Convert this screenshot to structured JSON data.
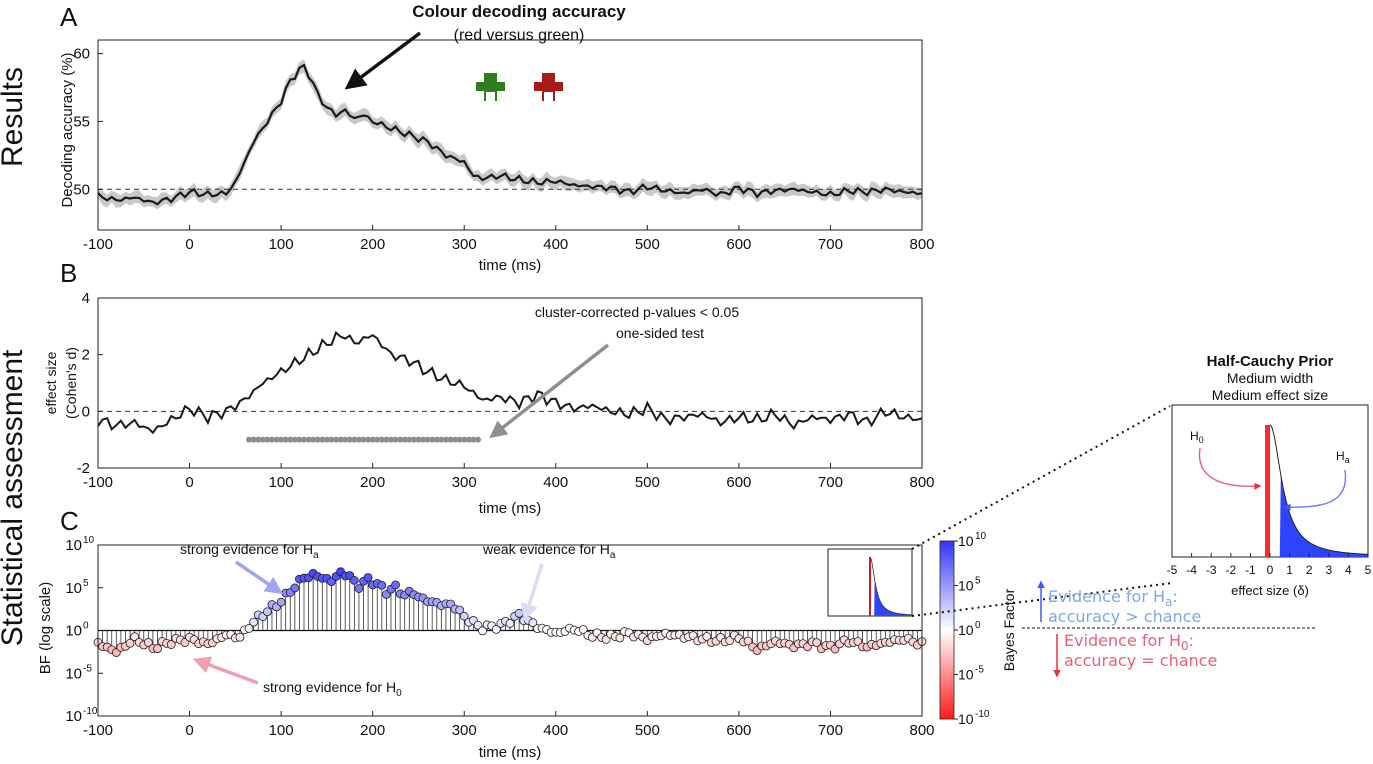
{
  "section_labels": {
    "results": "Results",
    "statistical": "Statistical assessment"
  },
  "panel_letters": {
    "a": "A",
    "b": "B",
    "c": "C"
  },
  "colors": {
    "line": "#1a1a1a",
    "ci_band": "#c9c9c9",
    "dashed": "#333333",
    "marker_gray": "#8c8c8c",
    "arrow_gray": "#8f8f8f",
    "green_stim": "#2e7d1e",
    "red_stim": "#a51c16",
    "bf_high": "#3232ff",
    "bf_low": "#ff1a1a",
    "prior_fill": "#2d45ff",
    "prior_red": "#ff2a2a",
    "ha_text": "#7fa6ea",
    "h0_text": "#e8607a",
    "ha_arrow": "#3a58ff",
    "h0_arrow": "#e8303a"
  },
  "icons": {
    "stimulus_green": "green-stimulus-icon",
    "stimulus_red": "red-stimulus-icon"
  },
  "panel_a": {
    "title": "Colour decoding accuracy",
    "subtitle": "(red versus green)",
    "ylabel": "Decoding accuracy (%)",
    "xlabel": "time (ms)"
  },
  "panel_b": {
    "ylabel_line1": "effect size",
    "ylabel_line2": "(Cohen's d)",
    "xlabel": "time (ms)",
    "annotation_line1": "cluster-corrected p-values < 0.05",
    "annotation_line2": "one-sided test"
  },
  "panel_c": {
    "ylabel": "BF (log scale)",
    "xlabel": "time (ms)",
    "annotation_strong_ha": "strong evidence for H",
    "annotation_weak_ha": "weak evidence for H",
    "annotation_strong_h0": "strong evidence for H",
    "sub_a": "a",
    "sub_0": "0"
  },
  "colorbar": {
    "label": "Bayes Factor",
    "ticks": [
      "10",
      "10",
      "10",
      "10",
      "10"
    ],
    "exponents": [
      "10",
      "5",
      "0",
      "-5",
      "-10"
    ]
  },
  "prior": {
    "title": "Half-Cauchy Prior",
    "line1": "Medium width",
    "line2": "Medium effect size",
    "xlabel": "effect size (δ)",
    "h": "H",
    "sub_0": "0",
    "sub_a": "a",
    "xticks": [
      "-5",
      "-4",
      "-3",
      "-2",
      "-1",
      "0",
      "1",
      "2",
      "3",
      "4",
      "5"
    ]
  },
  "legend": {
    "ha_line1_prefix": "Evidence for H",
    "ha_sub": "a",
    "ha_colon": ":",
    "ha_line2": "accuracy > chance",
    "h0_line1_prefix": "Evidence for H",
    "h0_sub": "0",
    "h0_colon": ":",
    "h0_line2": "accuracy = chance"
  },
  "chart_data": [
    {
      "id": "A",
      "type": "line",
      "title": "Colour decoding accuracy",
      "subtitle": "(red versus green)",
      "xlabel": "time (ms)",
      "ylabel": "Decoding accuracy (%)",
      "xlim": [
        -100,
        800
      ],
      "ylim": [
        47,
        61
      ],
      "xticks": [
        -100,
        0,
        100,
        200,
        300,
        400,
        500,
        600,
        700,
        800
      ],
      "yticks": [
        50,
        55,
        60
      ],
      "chance_level": 50,
      "x": [
        -100,
        -80,
        -60,
        -40,
        -20,
        0,
        20,
        40,
        50,
        60,
        70,
        80,
        90,
        100,
        110,
        120,
        125,
        130,
        140,
        150,
        160,
        170,
        180,
        190,
        200,
        220,
        240,
        260,
        280,
        300,
        310,
        320,
        340,
        360,
        380,
        400,
        420,
        440,
        460,
        480,
        500,
        520,
        540,
        560,
        580,
        600,
        620,
        640,
        660,
        680,
        700,
        720,
        740,
        760,
        780,
        800
      ],
      "y": [
        49.5,
        49.2,
        49.4,
        49.0,
        49.3,
        49.8,
        49.6,
        49.7,
        50.5,
        52.0,
        53.5,
        54.5,
        55.5,
        56.5,
        58.0,
        58.8,
        59.0,
        58.5,
        57.0,
        56.0,
        55.5,
        55.8,
        55.2,
        55.5,
        55.0,
        54.5,
        54.0,
        53.5,
        52.5,
        52.0,
        51.0,
        50.8,
        51.0,
        50.7,
        50.5,
        50.6,
        50.3,
        50.2,
        50.1,
        49.8,
        50.2,
        49.9,
        49.7,
        50.0,
        49.6,
        50.1,
        49.7,
        49.9,
        50.0,
        49.8,
        49.6,
        49.9,
        49.8,
        50.0,
        49.8,
        49.7
      ]
    },
    {
      "id": "B",
      "type": "line",
      "xlabel": "time (ms)",
      "ylabel": "effect size (Cohen's d)",
      "xlim": [
        -100,
        800
      ],
      "ylim": [
        -2,
        4
      ],
      "xticks": [
        -100,
        0,
        100,
        200,
        300,
        400,
        500,
        600,
        700,
        800
      ],
      "yticks": [
        -2,
        0,
        2,
        4
      ],
      "zero_line": 0,
      "x": [
        -100,
        -80,
        -60,
        -40,
        -20,
        0,
        20,
        40,
        60,
        80,
        100,
        120,
        140,
        160,
        170,
        180,
        200,
        220,
        240,
        260,
        280,
        300,
        320,
        340,
        360,
        380,
        400,
        420,
        440,
        460,
        480,
        500,
        520,
        540,
        560,
        580,
        600,
        620,
        640,
        660,
        680,
        700,
        720,
        740,
        760,
        780,
        800
      ],
      "y": [
        -0.3,
        -0.5,
        -0.4,
        -0.7,
        -0.3,
        0.1,
        -0.2,
        0.0,
        0.4,
        1.0,
        1.4,
        1.8,
        2.2,
        2.6,
        2.7,
        2.4,
        2.7,
        2.0,
        1.8,
        1.4,
        1.1,
        0.9,
        0.4,
        0.5,
        0.3,
        0.6,
        0.3,
        0.1,
        0.2,
        0.0,
        -0.1,
        0.1,
        -0.3,
        -0.2,
        -0.1,
        -0.4,
        -0.2,
        -0.3,
        -0.1,
        -0.5,
        -0.2,
        -0.3,
        -0.1,
        -0.4,
        0.0,
        -0.2,
        -0.3
      ],
      "significant_range": [
        65,
        315
      ],
      "significant_y": -1
    },
    {
      "id": "C",
      "type": "scatter",
      "xlabel": "time (ms)",
      "ylabel": "BF (log scale)",
      "xlim": [
        -100,
        800
      ],
      "ylim_log10": [
        -10,
        10
      ],
      "xticks": [
        -100,
        0,
        100,
        200,
        300,
        400,
        500,
        600,
        700,
        800
      ],
      "yticks_log10": [
        -10,
        -5,
        0,
        5,
        10
      ],
      "x": [
        -100,
        -80,
        -60,
        -40,
        -20,
        0,
        20,
        40,
        55,
        65,
        75,
        85,
        95,
        105,
        115,
        125,
        135,
        145,
        155,
        165,
        175,
        185,
        195,
        205,
        215,
        225,
        235,
        245,
        255,
        265,
        275,
        285,
        295,
        305,
        320,
        340,
        360,
        380,
        400,
        420,
        440,
        460,
        480,
        500,
        520,
        540,
        560,
        580,
        600,
        620,
        640,
        660,
        680,
        700,
        720,
        740,
        760,
        780,
        800
      ],
      "log10_bf": [
        -1.5,
        -2.5,
        -1.0,
        -2.0,
        -1.3,
        -1.0,
        -1.6,
        -0.5,
        -0.8,
        0.5,
        1.5,
        2.3,
        3.0,
        4.0,
        5.2,
        6.2,
        6.5,
        6.2,
        5.8,
        6.8,
        6.3,
        5.2,
        6.0,
        5.4,
        4.6,
        5.0,
        4.2,
        4.4,
        3.6,
        3.4,
        3.0,
        3.1,
        2.2,
        1.2,
        0.3,
        0.6,
        1.8,
        0.4,
        -0.3,
        0.2,
        -0.6,
        -0.8,
        -0.3,
        -1.0,
        -0.4,
        -0.7,
        -1.0,
        -1.2,
        -0.8,
        -2.2,
        -1.3,
        -1.8,
        -1.5,
        -2.0,
        -1.2,
        -1.9,
        -1.4,
        -1.0,
        -1.6
      ]
    },
    {
      "id": "prior",
      "type": "area",
      "title": "Half-Cauchy Prior",
      "xlabel": "effect size (δ)",
      "xlim": [
        -5,
        5
      ],
      "xticks": [
        -5,
        -4,
        -3,
        -2,
        -1,
        0,
        1,
        2,
        3,
        4,
        5
      ],
      "cauchy_scale": 0.707,
      "null_interval": [
        0,
        0.5
      ]
    }
  ]
}
